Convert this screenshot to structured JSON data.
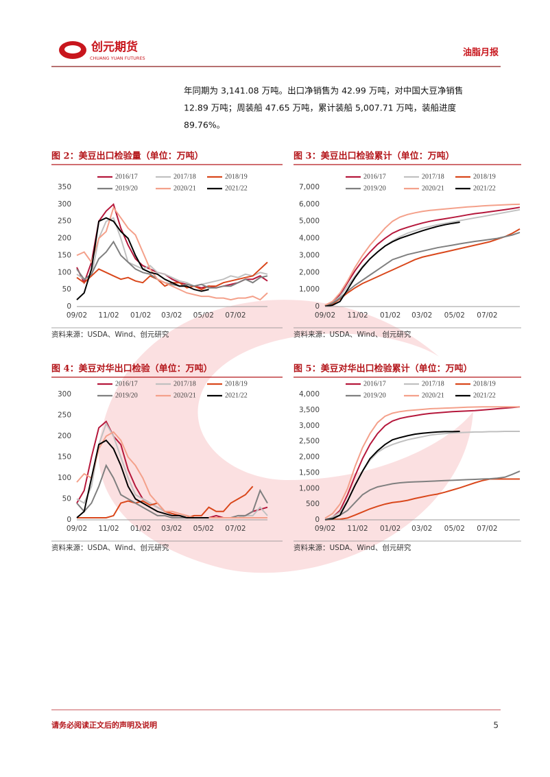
{
  "header": {
    "logo_cn": "创元期货",
    "logo_en": "CHUANG YUAN FUTURES",
    "report": "油脂月报"
  },
  "body": {
    "lines": [
      "年同期为 3,141.08 万吨。出口净销售为 42.99 万吨，对中国大豆净销售",
      "12.89 万吨；周装船 47.65 万吨，累计装船 5,007.71 万吨，装船进度",
      "89.76%。"
    ]
  },
  "footer": {
    "disclaimer": "请务必阅读正文后的声明及说明",
    "page": "5"
  },
  "chart_data": [
    {
      "type": "line",
      "title": "图 2：美豆出口检验量（单位：万吨）",
      "source": "资料来源：USDA、Wind、创元研究",
      "x": [
        0,
        2,
        4,
        6,
        8,
        10,
        12,
        14,
        16,
        18,
        20,
        22,
        24,
        26,
        28,
        30,
        32,
        34,
        36,
        38,
        40,
        42,
        44,
        46,
        48,
        50,
        52
      ],
      "xlim": [
        0,
        52
      ],
      "xticks": [
        {
          "value": 0,
          "label": "09/02"
        },
        {
          "value": 8.71,
          "label": "11/02"
        },
        {
          "value": 17.43,
          "label": "01/02"
        },
        {
          "value": 25.86,
          "label": "03/02"
        },
        {
          "value": 34.57,
          "label": "05/02"
        },
        {
          "value": 43.29,
          "label": "07/02"
        }
      ],
      "ylim": [
        0,
        350
      ],
      "yticks": [
        0,
        50,
        100,
        150,
        200,
        250,
        300,
        350
      ],
      "series": [
        {
          "name": "2016/17",
          "color": "#b5173b",
          "values": [
            115,
            70,
            130,
            250,
            280,
            300,
            230,
            180,
            140,
            120,
            110,
            100,
            95,
            80,
            70,
            65,
            60,
            55,
            60,
            55,
            60,
            65,
            70,
            80,
            80,
            90,
            75
          ]
        },
        {
          "name": "2017/18",
          "color": "#c0c0c0",
          "values": [
            95,
            80,
            90,
            200,
            250,
            260,
            200,
            130,
            120,
            110,
            120,
            100,
            95,
            85,
            75,
            70,
            60,
            65,
            70,
            75,
            80,
            90,
            85,
            95,
            90,
            100,
            95
          ]
        },
        {
          "name": "2018/19",
          "color": "#d9471b",
          "values": [
            85,
            70,
            90,
            110,
            100,
            90,
            80,
            85,
            75,
            70,
            90,
            80,
            60,
            70,
            70,
            55,
            60,
            50,
            60,
            60,
            70,
            75,
            80,
            85,
            90,
            110,
            130
          ]
        },
        {
          "name": "2019/20",
          "color": "#7f7f7f",
          "values": [
            110,
            80,
            95,
            140,
            160,
            190,
            150,
            130,
            110,
            100,
            95,
            80,
            70,
            65,
            60,
            65,
            60,
            65,
            55,
            55,
            60,
            60,
            70,
            80,
            70,
            85,
            90
          ]
        },
        {
          "name": "2020/21",
          "color": "#f4a08a",
          "values": [
            150,
            160,
            130,
            200,
            220,
            290,
            260,
            230,
            210,
            160,
            110,
            80,
            70,
            60,
            50,
            40,
            35,
            30,
            30,
            25,
            25,
            20,
            25,
            25,
            30,
            20,
            40
          ]
        },
        {
          "name": "2021/22",
          "color": "#000000",
          "values": [
            20,
            40,
            110,
            250,
            260,
            250,
            220,
            200,
            150,
            110,
            100,
            95,
            80,
            70,
            60,
            60,
            50,
            45,
            50,
            null,
            null,
            null,
            null,
            null,
            null,
            null,
            null
          ]
        }
      ]
    },
    {
      "type": "line",
      "title": "图 3：美豆出口检验累计（单位：万吨）",
      "source": "资料来源：USDA、Wind、创元研究",
      "x": [
        0,
        2,
        4,
        6,
        8,
        10,
        12,
        14,
        16,
        18,
        20,
        22,
        24,
        26,
        28,
        30,
        32,
        34,
        36,
        38,
        40,
        42,
        44,
        46,
        48,
        50,
        52
      ],
      "xlim": [
        0,
        52
      ],
      "xticks": [
        {
          "value": 0,
          "label": "09/02"
        },
        {
          "value": 8.71,
          "label": "11/02"
        },
        {
          "value": 17.43,
          "label": "01/02"
        },
        {
          "value": 25.86,
          "label": "03/02"
        },
        {
          "value": 34.57,
          "label": "05/02"
        },
        {
          "value": 43.29,
          "label": "07/02"
        }
      ],
      "ylim": [
        0,
        7000
      ],
      "yticks": [
        0,
        {
          "value": 1000,
          "label": "1,000"
        },
        {
          "value": 2000,
          "label": "2,000"
        },
        {
          "value": 3000,
          "label": "3,000"
        },
        {
          "value": 4000,
          "label": "4,000"
        },
        {
          "value": 5000,
          "label": "5,000"
        },
        {
          "value": 6000,
          "label": "6,000"
        },
        {
          "value": 7000,
          "label": "7,000"
        }
      ],
      "series": [
        {
          "name": "2016/17",
          "color": "#b5173b",
          "values": [
            50,
            250,
            700,
            1400,
            2100,
            2700,
            3200,
            3650,
            4000,
            4300,
            4500,
            4650,
            4780,
            4900,
            5000,
            5080,
            5150,
            5220,
            5300,
            5380,
            5450,
            5500,
            5560,
            5620,
            5680,
            5750,
            5820
          ]
        },
        {
          "name": "2017/18",
          "color": "#c0c0c0",
          "values": [
            40,
            200,
            600,
            1200,
            1800,
            2350,
            2800,
            3200,
            3550,
            3850,
            4100,
            4300,
            4450,
            4600,
            4700,
            4800,
            4880,
            4960,
            5040,
            5120,
            5200,
            5280,
            5360,
            5440,
            5520,
            5600,
            5680
          ]
        },
        {
          "name": "2018/19",
          "color": "#d9471b",
          "values": [
            40,
            150,
            450,
            800,
            1100,
            1350,
            1550,
            1750,
            1950,
            2150,
            2350,
            2550,
            2750,
            2900,
            3000,
            3100,
            3200,
            3300,
            3400,
            3500,
            3600,
            3700,
            3800,
            3950,
            4100,
            4300,
            4550
          ]
        },
        {
          "name": "2019/20",
          "color": "#7f7f7f",
          "values": [
            50,
            200,
            500,
            900,
            1250,
            1550,
            1850,
            2150,
            2450,
            2750,
            2900,
            3050,
            3150,
            3250,
            3350,
            3450,
            3530,
            3600,
            3680,
            3750,
            3820,
            3880,
            3940,
            4000,
            4100,
            4200,
            4350
          ]
        },
        {
          "name": "2020/21",
          "color": "#f4a08a",
          "values": [
            80,
            300,
            800,
            1500,
            2300,
            3000,
            3600,
            4100,
            4600,
            5000,
            5250,
            5400,
            5500,
            5580,
            5640,
            5680,
            5720,
            5760,
            5800,
            5840,
            5870,
            5900,
            5930,
            5950,
            5970,
            5990,
            6000
          ]
        },
        {
          "name": "2021/22",
          "color": "#000000",
          "values": [
            20,
            80,
            300,
            1000,
            1700,
            2300,
            2800,
            3200,
            3550,
            3800,
            4000,
            4150,
            4300,
            4450,
            4580,
            4700,
            4800,
            4880,
            4950,
            null,
            null,
            null,
            null,
            null,
            null,
            null,
            null
          ]
        }
      ]
    },
    {
      "type": "line",
      "title": "图 4：美豆对华出口检验（单位：万吨）",
      "source": "资料来源：USDA、Wind、创元研究",
      "x": [
        0,
        2,
        4,
        6,
        8,
        10,
        12,
        14,
        16,
        18,
        20,
        22,
        24,
        26,
        28,
        30,
        32,
        34,
        36,
        38,
        40,
        42,
        44,
        46,
        48,
        50,
        52
      ],
      "xlim": [
        0,
        52
      ],
      "xticks": [
        {
          "value": 0,
          "label": "09/02"
        },
        {
          "value": 8.71,
          "label": "11/02"
        },
        {
          "value": 17.43,
          "label": "01/02"
        },
        {
          "value": 25.86,
          "label": "03/02"
        },
        {
          "value": 34.57,
          "label": "05/02"
        },
        {
          "value": 43.29,
          "label": "07/02"
        }
      ],
      "ylim": [
        0,
        300
      ],
      "yticks": [
        0,
        50,
        100,
        150,
        200,
        250,
        300
      ],
      "series": [
        {
          "name": "2016/17",
          "color": "#b5173b",
          "values": [
            40,
            70,
            150,
            220,
            235,
            200,
            180,
            120,
            80,
            50,
            40,
            30,
            20,
            15,
            10,
            10,
            5,
            5,
            5,
            10,
            5,
            5,
            5,
            10,
            20,
            25,
            30
          ]
        },
        {
          "name": "2017/18",
          "color": "#c0c0c0",
          "values": [
            50,
            40,
            80,
            180,
            230,
            200,
            150,
            100,
            60,
            50,
            40,
            30,
            20,
            15,
            10,
            10,
            5,
            5,
            5,
            5,
            5,
            5,
            5,
            10,
            10,
            30,
            10
          ]
        },
        {
          "name": "2018/19",
          "color": "#d9471b",
          "values": [
            5,
            5,
            5,
            5,
            5,
            10,
            40,
            45,
            40,
            45,
            35,
            40,
            20,
            15,
            10,
            5,
            10,
            10,
            30,
            20,
            20,
            40,
            50,
            60,
            80,
            null,
            null
          ]
        },
        {
          "name": "2019/20",
          "color": "#7f7f7f",
          "values": [
            40,
            20,
            40,
            80,
            130,
            100,
            60,
            50,
            40,
            30,
            20,
            10,
            10,
            5,
            5,
            5,
            5,
            5,
            5,
            5,
            5,
            5,
            10,
            10,
            20,
            70,
            40
          ]
        },
        {
          "name": "2020/21",
          "color": "#f4a08a",
          "values": [
            90,
            110,
            100,
            170,
            200,
            210,
            190,
            150,
            130,
            100,
            60,
            40,
            20,
            20,
            15,
            10,
            5,
            5,
            5,
            5,
            5,
            5,
            5,
            5,
            5,
            5,
            5
          ]
        },
        {
          "name": "2021/22",
          "color": "#000000",
          "values": [
            5,
            20,
            100,
            180,
            190,
            170,
            130,
            80,
            50,
            40,
            30,
            20,
            15,
            10,
            10,
            5,
            5,
            5,
            5,
            null,
            null,
            null,
            null,
            null,
            null,
            null,
            null
          ]
        }
      ]
    },
    {
      "type": "line",
      "title": "图 5：美豆对华出口检验累计（单位：万吨）",
      "source": "资料来源：USDA、Wind、创元研究",
      "x": [
        0,
        2,
        4,
        6,
        8,
        10,
        12,
        14,
        16,
        18,
        20,
        22,
        24,
        26,
        28,
        30,
        32,
        34,
        36,
        38,
        40,
        42,
        44,
        46,
        48,
        50,
        52
      ],
      "xlim": [
        0,
        52
      ],
      "xticks": [
        {
          "value": 0,
          "label": "09/02"
        },
        {
          "value": 8.71,
          "label": "11/02"
        },
        {
          "value": 17.43,
          "label": "01/02"
        },
        {
          "value": 25.86,
          "label": "03/02"
        },
        {
          "value": 34.57,
          "label": "05/02"
        },
        {
          "value": 43.29,
          "label": "07/02"
        }
      ],
      "ylim": [
        0,
        4000
      ],
      "yticks": [
        0,
        500,
        {
          "value": 1000,
          "label": "1,000"
        },
        {
          "value": 1500,
          "label": "1,500"
        },
        {
          "value": 2000,
          "label": "2,000"
        },
        {
          "value": 2500,
          "label": "2,500"
        },
        {
          "value": 3000,
          "label": "3,000"
        },
        {
          "value": 3500,
          "label": "3,500"
        },
        {
          "value": 4000,
          "label": "4,000"
        }
      ],
      "series": [
        {
          "name": "2016/17",
          "color": "#b5173b",
          "values": [
            0,
            80,
            300,
            800,
            1400,
            1950,
            2400,
            2750,
            3000,
            3150,
            3230,
            3280,
            3320,
            3360,
            3390,
            3410,
            3430,
            3450,
            3460,
            3470,
            3480,
            3500,
            3520,
            3540,
            3560,
            3580,
            3600
          ]
        },
        {
          "name": "2017/18",
          "color": "#c0c0c0",
          "values": [
            0,
            80,
            250,
            600,
            1100,
            1550,
            1900,
            2150,
            2300,
            2400,
            2480,
            2550,
            2600,
            2650,
            2700,
            2730,
            2750,
            2770,
            2780,
            2790,
            2800,
            2800,
            2810,
            2810,
            2820,
            2820,
            2820
          ]
        },
        {
          "name": "2018/19",
          "color": "#d9471b",
          "values": [
            0,
            10,
            20,
            60,
            150,
            250,
            350,
            430,
            500,
            550,
            580,
            620,
            680,
            730,
            780,
            820,
            880,
            950,
            1020,
            1100,
            1180,
            1250,
            1300,
            1300,
            1300,
            1300,
            1300
          ]
        },
        {
          "name": "2019/20",
          "color": "#7f7f7f",
          "values": [
            0,
            60,
            150,
            300,
            550,
            800,
            950,
            1050,
            1100,
            1150,
            1180,
            1200,
            1210,
            1220,
            1230,
            1240,
            1250,
            1260,
            1270,
            1280,
            1290,
            1300,
            1310,
            1330,
            1360,
            1450,
            1550
          ]
        },
        {
          "name": "2020/21",
          "color": "#f4a08a",
          "values": [
            50,
            200,
            500,
            1000,
            1700,
            2300,
            2750,
            3100,
            3300,
            3400,
            3450,
            3480,
            3500,
            3520,
            3540,
            3550,
            3560,
            3570,
            3580,
            3590,
            3595,
            3600,
            3600,
            3600,
            3600,
            3600,
            3600
          ]
        },
        {
          "name": "2021/22",
          "color": "#000000",
          "values": [
            0,
            30,
            150,
            600,
            1100,
            1550,
            1950,
            2200,
            2400,
            2550,
            2620,
            2680,
            2730,
            2760,
            2780,
            2800,
            2810,
            2810,
            2820,
            null,
            null,
            null,
            null,
            null,
            null,
            null,
            null
          ]
        }
      ]
    }
  ]
}
